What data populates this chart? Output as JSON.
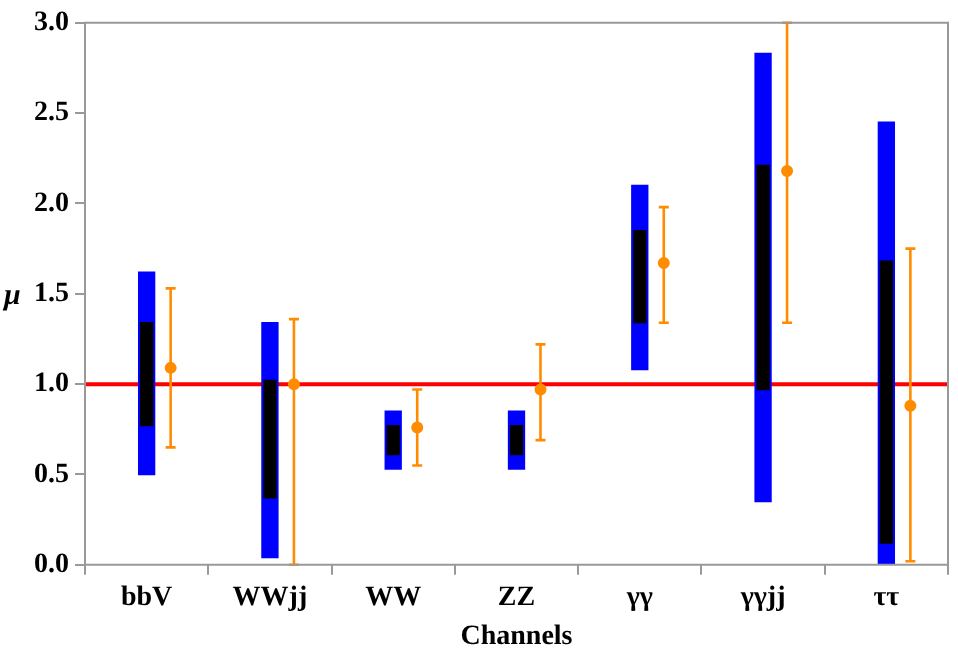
{
  "chart_data": {
    "type": "bar",
    "xlabel": "Channels",
    "ylabel": "μ",
    "categories": [
      "bbV",
      "WWjj",
      "WW",
      "ZZ",
      "γγ",
      "γγjj",
      "ττ"
    ],
    "series": [
      {
        "color": "#0000ff",
        "base": [
          0.5,
          0.04,
          0.53,
          0.53,
          1.08,
          0.35,
          0.0
        ],
        "values": [
          1.12,
          1.3,
          0.32,
          0.32,
          1.02,
          2.48,
          2.45
        ]
      },
      {
        "color": "#000000",
        "base": [
          0.77,
          0.37,
          0.61,
          0.61,
          1.34,
          0.97,
          0.12
        ],
        "values": [
          0.57,
          0.65,
          0.16,
          0.16,
          0.51,
          1.24,
          1.56
        ]
      },
      {
        "type": "scatter",
        "color": "#ff8c00",
        "x": [
          "bbV",
          "WWjj",
          "WW",
          "ZZ",
          "γγ",
          "γγjj",
          "ττ"
        ],
        "values": [
          1.09,
          1.0,
          0.76,
          0.97,
          1.67,
          2.18,
          0.88
        ],
        "errors": [
          [
            0.65,
            1.53
          ],
          [
            0.0,
            1.36
          ],
          [
            0.55,
            0.97
          ],
          [
            0.69,
            1.22
          ],
          [
            1.34,
            1.98
          ],
          [
            1.34,
            3.0
          ],
          [
            0.02,
            1.75
          ]
        ]
      }
    ],
    "ylim": [
      0,
      3
    ],
    "yticks": [
      {
        "value": 0,
        "label": "0.0"
      },
      {
        "value": 0.5,
        "label": "0.5"
      },
      {
        "value": 1,
        "label": "1.0"
      },
      {
        "value": 1.5,
        "label": "1.5"
      },
      {
        "value": 2,
        "label": "2.0"
      },
      {
        "value": 2.5,
        "label": "2.5"
      },
      {
        "value": 3,
        "label": "3.0"
      }
    ],
    "ref_lines": [
      {
        "axis": "y",
        "value": 1,
        "color": "#ff0000"
      }
    ],
    "grid": false,
    "legend": false,
    "marker": "circle"
  }
}
